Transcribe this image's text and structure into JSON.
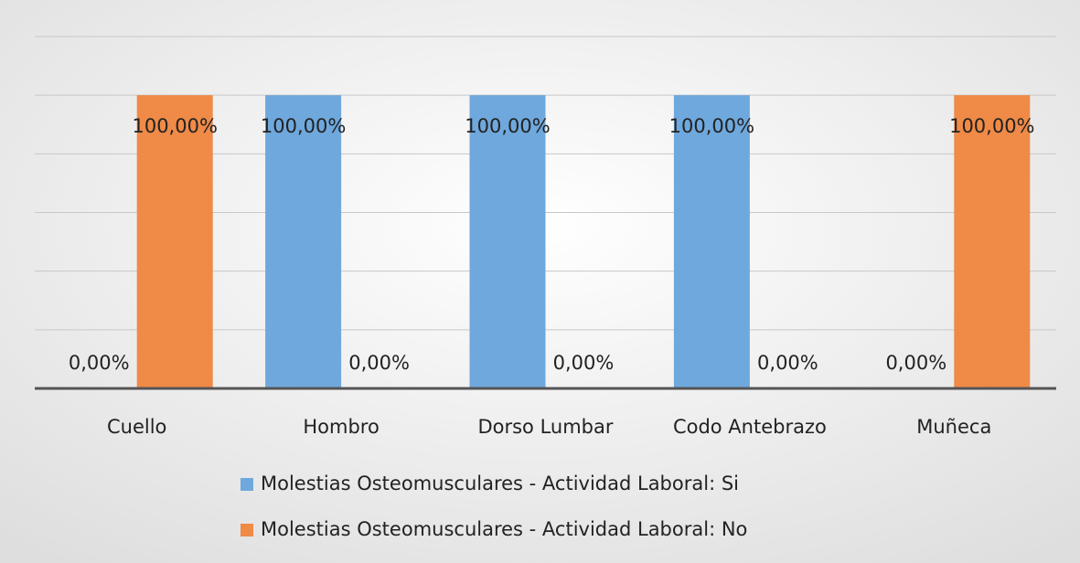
{
  "chart_data": {
    "type": "bar",
    "categories": [
      "Cuello",
      "Hombro",
      "Dorso Lumbar",
      "Codo Antebrazo",
      "Muñeca"
    ],
    "series": [
      {
        "name": "Molestias Osteomusculares - Actividad Laboral: Si",
        "color": "#6fa8dc",
        "values": [
          0,
          100,
          100,
          100,
          0
        ],
        "value_labels": [
          "0,00%",
          "100,00%",
          "100,00%",
          "100,00%",
          "0,00%"
        ]
      },
      {
        "name": "Molestias Osteomusculares - Actividad Laboral: No",
        "color": "#ef8a47",
        "values": [
          100,
          0,
          0,
          0,
          100
        ],
        "value_labels": [
          "100,00%",
          "0,00%",
          "0,00%",
          "0,00%",
          "100,00%"
        ]
      }
    ],
    "ylim": [
      0,
      120
    ],
    "yticks": [
      0,
      20,
      40,
      60,
      80,
      100,
      120
    ],
    "grid": true
  }
}
